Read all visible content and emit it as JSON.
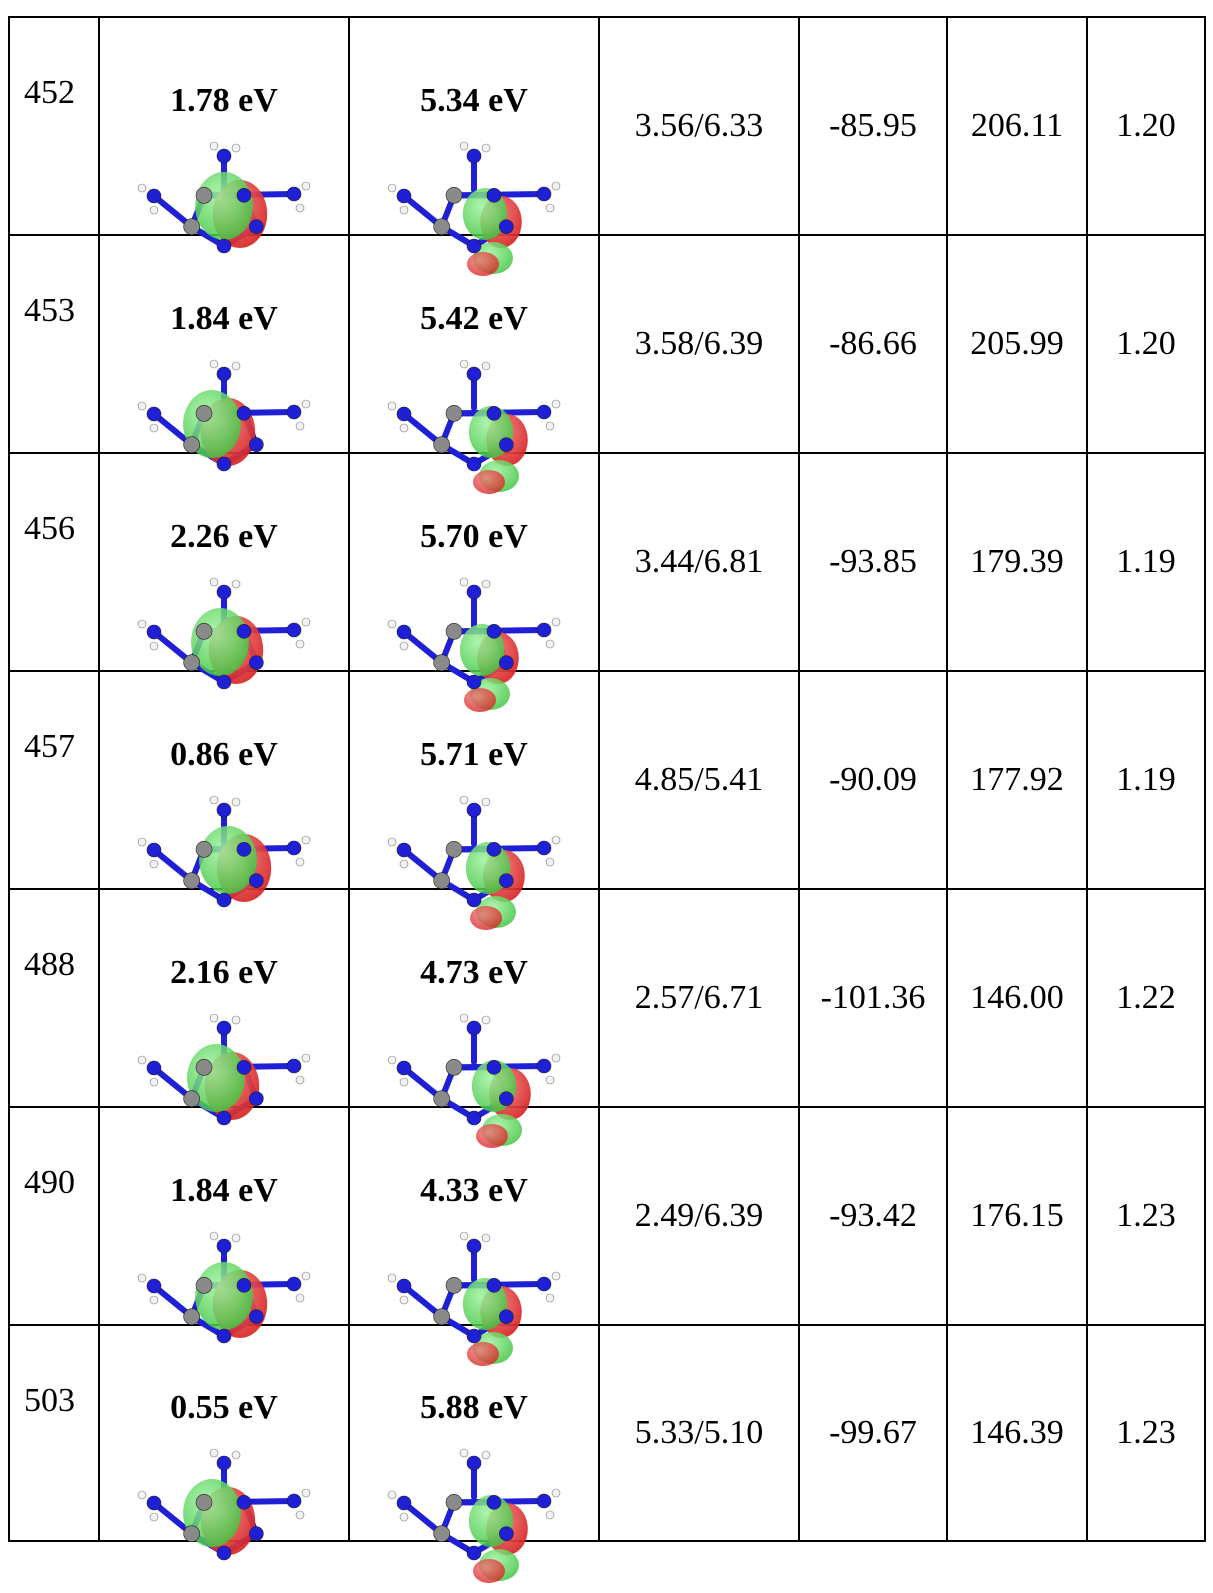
{
  "rows": [
    {
      "id": "452",
      "homo_energy": "1.78 eV",
      "lumo_energy": "5.34 eV",
      "col3": "3.56/6.33",
      "col4": "-85.95",
      "col5": "206.11",
      "col6": "1.20"
    },
    {
      "id": "453",
      "homo_energy": "1.84 eV",
      "lumo_energy": "5.42 eV",
      "col3": "3.58/6.39",
      "col4": "-86.66",
      "col5": "205.99",
      "col6": "1.20"
    },
    {
      "id": "456",
      "homo_energy": "2.26 eV",
      "lumo_energy": "5.70 eV",
      "col3": "3.44/6.81",
      "col4": "-93.85",
      "col5": "179.39",
      "col6": "1.19"
    },
    {
      "id": "457",
      "homo_energy": "0.86 eV",
      "lumo_energy": "5.71 eV",
      "col3": "4.85/5.41",
      "col4": "-90.09",
      "col5": "177.92",
      "col6": "1.19"
    },
    {
      "id": "488",
      "homo_energy": "2.16 eV",
      "lumo_energy": "4.73 eV",
      "col3": "2.57/6.71",
      "col4": "-101.36",
      "col5": "146.00",
      "col6": "1.22"
    },
    {
      "id": "490",
      "homo_energy": "1.84 eV",
      "lumo_energy": "4.33 eV",
      "col3": "2.49/6.39",
      "col4": "-93.42",
      "col5": "176.15",
      "col6": "1.23"
    },
    {
      "id": "503",
      "homo_energy": "0.55 eV",
      "lumo_energy": "5.88 eV",
      "col3": "5.33/5.10",
      "col4": "-99.67",
      "col5": "146.39",
      "col6": "1.23"
    }
  ],
  "colors": {
    "nitrogen": "#1f1fd6",
    "carbon": "#8a8a8a",
    "hydrogen": "#f2f2f2",
    "lobe_positive": "#3ec43e",
    "lobe_negative": "#d62020"
  }
}
